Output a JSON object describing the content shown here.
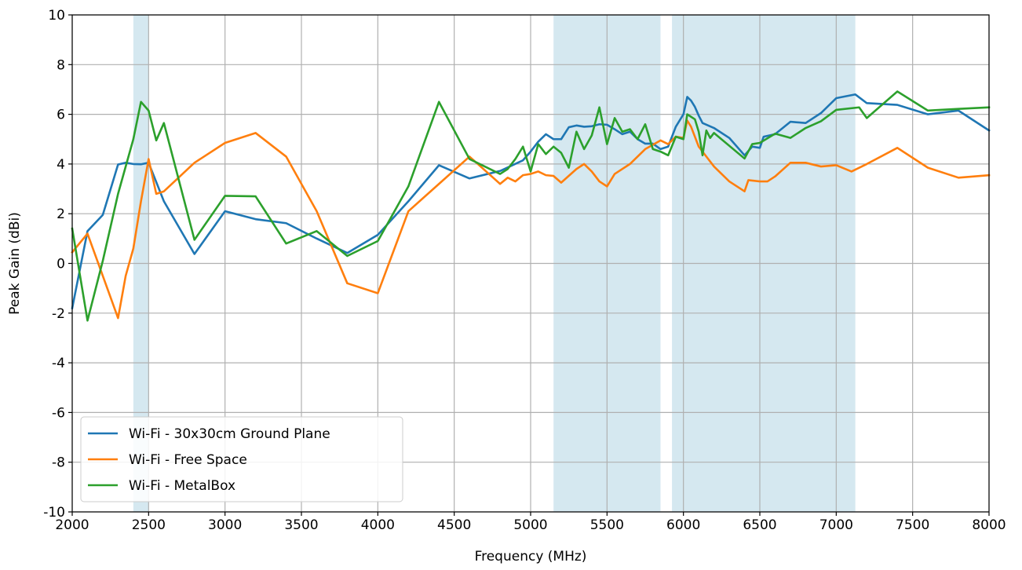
{
  "chart_data": {
    "type": "line",
    "title": "",
    "xlabel": "Frequency (MHz)",
    "ylabel": "Peak Gain (dBi)",
    "xlim": [
      2000,
      8000
    ],
    "ylim": [
      -10,
      10
    ],
    "xticks": [
      2000,
      2500,
      3000,
      3500,
      4000,
      4500,
      5000,
      5500,
      6000,
      6500,
      7000,
      7500,
      8000
    ],
    "yticks": [
      -10,
      -8,
      -6,
      -4,
      -2,
      0,
      2,
      4,
      6,
      8,
      10
    ],
    "grid": true,
    "legend_position": "lower-left",
    "band_color": "#d5e8f0",
    "bands": [
      [
        2400,
        2500
      ],
      [
        5150,
        5850
      ],
      [
        5925,
        7125
      ]
    ],
    "series": [
      {
        "name": "Wi-Fi - 30x30cm Ground Plane",
        "color": "#1f77b4",
        "points": [
          [
            2000,
            -1.8
          ],
          [
            2100,
            1.3
          ],
          [
            2200,
            1.95
          ],
          [
            2300,
            3.98
          ],
          [
            2350,
            4.05
          ],
          [
            2400,
            4.0
          ],
          [
            2450,
            3.99
          ],
          [
            2500,
            4.05
          ],
          [
            2600,
            2.5
          ],
          [
            2800,
            0.38
          ],
          [
            3000,
            2.1
          ],
          [
            3200,
            1.78
          ],
          [
            3400,
            1.62
          ],
          [
            3600,
            1.0
          ],
          [
            3800,
            0.42
          ],
          [
            4000,
            1.15
          ],
          [
            4200,
            2.5
          ],
          [
            4400,
            3.95
          ],
          [
            4600,
            3.42
          ],
          [
            4800,
            3.72
          ],
          [
            4950,
            4.15
          ],
          [
            5000,
            4.5
          ],
          [
            5050,
            4.9
          ],
          [
            5100,
            5.2
          ],
          [
            5150,
            5.0
          ],
          [
            5200,
            5.0
          ],
          [
            5250,
            5.48
          ],
          [
            5300,
            5.55
          ],
          [
            5350,
            5.5
          ],
          [
            5400,
            5.52
          ],
          [
            5450,
            5.6
          ],
          [
            5500,
            5.58
          ],
          [
            5550,
            5.4
          ],
          [
            5600,
            5.2
          ],
          [
            5650,
            5.3
          ],
          [
            5700,
            5.0
          ],
          [
            5750,
            4.82
          ],
          [
            5800,
            4.82
          ],
          [
            5850,
            4.6
          ],
          [
            5900,
            4.7
          ],
          [
            5950,
            5.5
          ],
          [
            6000,
            6.0
          ],
          [
            6025,
            6.7
          ],
          [
            6050,
            6.55
          ],
          [
            6075,
            6.3
          ],
          [
            6100,
            5.95
          ],
          [
            6125,
            5.65
          ],
          [
            6200,
            5.45
          ],
          [
            6300,
            5.05
          ],
          [
            6400,
            4.35
          ],
          [
            6450,
            4.7
          ],
          [
            6500,
            4.65
          ],
          [
            6525,
            5.1
          ],
          [
            6600,
            5.2
          ],
          [
            6700,
            5.7
          ],
          [
            6800,
            5.65
          ],
          [
            6900,
            6.05
          ],
          [
            7000,
            6.65
          ],
          [
            7125,
            6.8
          ],
          [
            7200,
            6.45
          ],
          [
            7400,
            6.38
          ],
          [
            7600,
            6.0
          ],
          [
            7800,
            6.15
          ],
          [
            8000,
            5.35
          ]
        ]
      },
      {
        "name": "Wi-Fi - Free Space",
        "color": "#ff7f0e",
        "points": [
          [
            2000,
            0.45
          ],
          [
            2100,
            1.2
          ],
          [
            2200,
            -0.5
          ],
          [
            2300,
            -2.2
          ],
          [
            2350,
            -0.5
          ],
          [
            2400,
            0.6
          ],
          [
            2450,
            2.5
          ],
          [
            2500,
            4.2
          ],
          [
            2550,
            2.8
          ],
          [
            2600,
            2.9
          ],
          [
            2800,
            4.05
          ],
          [
            3000,
            4.85
          ],
          [
            3200,
            5.25
          ],
          [
            3400,
            4.3
          ],
          [
            3600,
            2.1
          ],
          [
            3800,
            -0.8
          ],
          [
            4000,
            -1.2
          ],
          [
            4200,
            2.1
          ],
          [
            4400,
            3.2
          ],
          [
            4600,
            4.3
          ],
          [
            4700,
            3.75
          ],
          [
            4800,
            3.2
          ],
          [
            4850,
            3.45
          ],
          [
            4900,
            3.3
          ],
          [
            4950,
            3.55
          ],
          [
            5000,
            3.6
          ],
          [
            5050,
            3.7
          ],
          [
            5100,
            3.55
          ],
          [
            5150,
            3.52
          ],
          [
            5200,
            3.25
          ],
          [
            5300,
            3.8
          ],
          [
            5350,
            4.0
          ],
          [
            5400,
            3.7
          ],
          [
            5450,
            3.3
          ],
          [
            5500,
            3.1
          ],
          [
            5550,
            3.6
          ],
          [
            5650,
            4.0
          ],
          [
            5750,
            4.6
          ],
          [
            5850,
            4.95
          ],
          [
            5900,
            4.8
          ],
          [
            5950,
            5.1
          ],
          [
            6000,
            5.05
          ],
          [
            6025,
            5.75
          ],
          [
            6050,
            5.5
          ],
          [
            6100,
            4.7
          ],
          [
            6200,
            3.9
          ],
          [
            6300,
            3.3
          ],
          [
            6400,
            2.9
          ],
          [
            6425,
            3.35
          ],
          [
            6500,
            3.3
          ],
          [
            6550,
            3.3
          ],
          [
            6600,
            3.5
          ],
          [
            6700,
            4.05
          ],
          [
            6800,
            4.05
          ],
          [
            6900,
            3.9
          ],
          [
            7000,
            3.95
          ],
          [
            7100,
            3.7
          ],
          [
            7200,
            4.0
          ],
          [
            7400,
            4.65
          ],
          [
            7600,
            3.85
          ],
          [
            7800,
            3.45
          ],
          [
            8000,
            3.55
          ]
        ]
      },
      {
        "name": "Wi-Fi - MetalBox",
        "color": "#2ca02c",
        "points": [
          [
            2000,
            1.4
          ],
          [
            2100,
            -2.3
          ],
          [
            2200,
            0.1
          ],
          [
            2300,
            2.8
          ],
          [
            2400,
            5.0
          ],
          [
            2450,
            6.5
          ],
          [
            2500,
            6.15
          ],
          [
            2550,
            4.95
          ],
          [
            2600,
            5.65
          ],
          [
            2800,
            0.95
          ],
          [
            3000,
            2.72
          ],
          [
            3200,
            2.7
          ],
          [
            3400,
            0.8
          ],
          [
            3600,
            1.3
          ],
          [
            3800,
            0.3
          ],
          [
            4000,
            0.9
          ],
          [
            4200,
            3.1
          ],
          [
            4400,
            6.5
          ],
          [
            4600,
            4.2
          ],
          [
            4800,
            3.6
          ],
          [
            4850,
            3.8
          ],
          [
            4900,
            4.2
          ],
          [
            4950,
            4.7
          ],
          [
            5000,
            3.7
          ],
          [
            5050,
            4.8
          ],
          [
            5100,
            4.4
          ],
          [
            5150,
            4.7
          ],
          [
            5200,
            4.45
          ],
          [
            5250,
            3.85
          ],
          [
            5300,
            5.3
          ],
          [
            5350,
            4.6
          ],
          [
            5400,
            5.15
          ],
          [
            5450,
            6.28
          ],
          [
            5500,
            4.8
          ],
          [
            5550,
            5.85
          ],
          [
            5600,
            5.3
          ],
          [
            5650,
            5.4
          ],
          [
            5700,
            5.0
          ],
          [
            5750,
            5.6
          ],
          [
            5800,
            4.6
          ],
          [
            5850,
            4.5
          ],
          [
            5900,
            4.35
          ],
          [
            5950,
            5.1
          ],
          [
            6000,
            5.0
          ],
          [
            6025,
            6.0
          ],
          [
            6075,
            5.8
          ],
          [
            6100,
            5.3
          ],
          [
            6125,
            4.35
          ],
          [
            6150,
            5.35
          ],
          [
            6175,
            5.05
          ],
          [
            6200,
            5.25
          ],
          [
            6400,
            4.22
          ],
          [
            6450,
            4.8
          ],
          [
            6500,
            4.85
          ],
          [
            6600,
            5.22
          ],
          [
            6700,
            5.05
          ],
          [
            6800,
            5.45
          ],
          [
            6900,
            5.72
          ],
          [
            7000,
            6.18
          ],
          [
            7150,
            6.28
          ],
          [
            7200,
            5.85
          ],
          [
            7400,
            6.92
          ],
          [
            7600,
            6.15
          ],
          [
            7800,
            6.22
          ],
          [
            8000,
            6.28
          ]
        ]
      }
    ]
  }
}
